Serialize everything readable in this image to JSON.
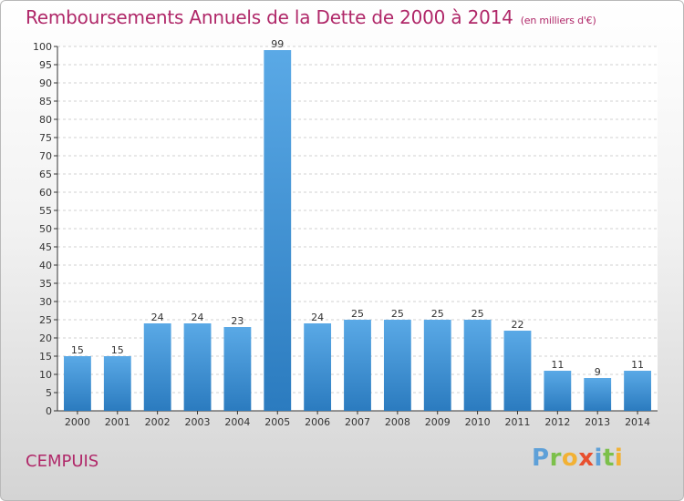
{
  "header": {
    "title": "Remboursements Annuels de la Dette de 2000 à 2014",
    "unit": "(en milliers d'€)"
  },
  "footer": {
    "commune": "CEMPUIS",
    "logo": [
      "P",
      "r",
      "o",
      "x",
      "i",
      "t",
      "i"
    ]
  },
  "colors": {
    "title": "#b02869",
    "bar_light": "#5aa9e6",
    "bar_dark": "#2b7bbf",
    "grid": "#d0d0d0",
    "axis": "#333333"
  },
  "chart_data": {
    "type": "bar",
    "categories": [
      "2000",
      "2001",
      "2002",
      "2003",
      "2004",
      "2005",
      "2006",
      "2007",
      "2008",
      "2009",
      "2010",
      "2011",
      "2012",
      "2013",
      "2014"
    ],
    "values": [
      15,
      15,
      24,
      24,
      23,
      99,
      24,
      25,
      25,
      25,
      25,
      22,
      11,
      9,
      11
    ],
    "ylim": [
      0,
      100
    ],
    "ytick_step": 5,
    "grid": true,
    "data_labels": true
  }
}
